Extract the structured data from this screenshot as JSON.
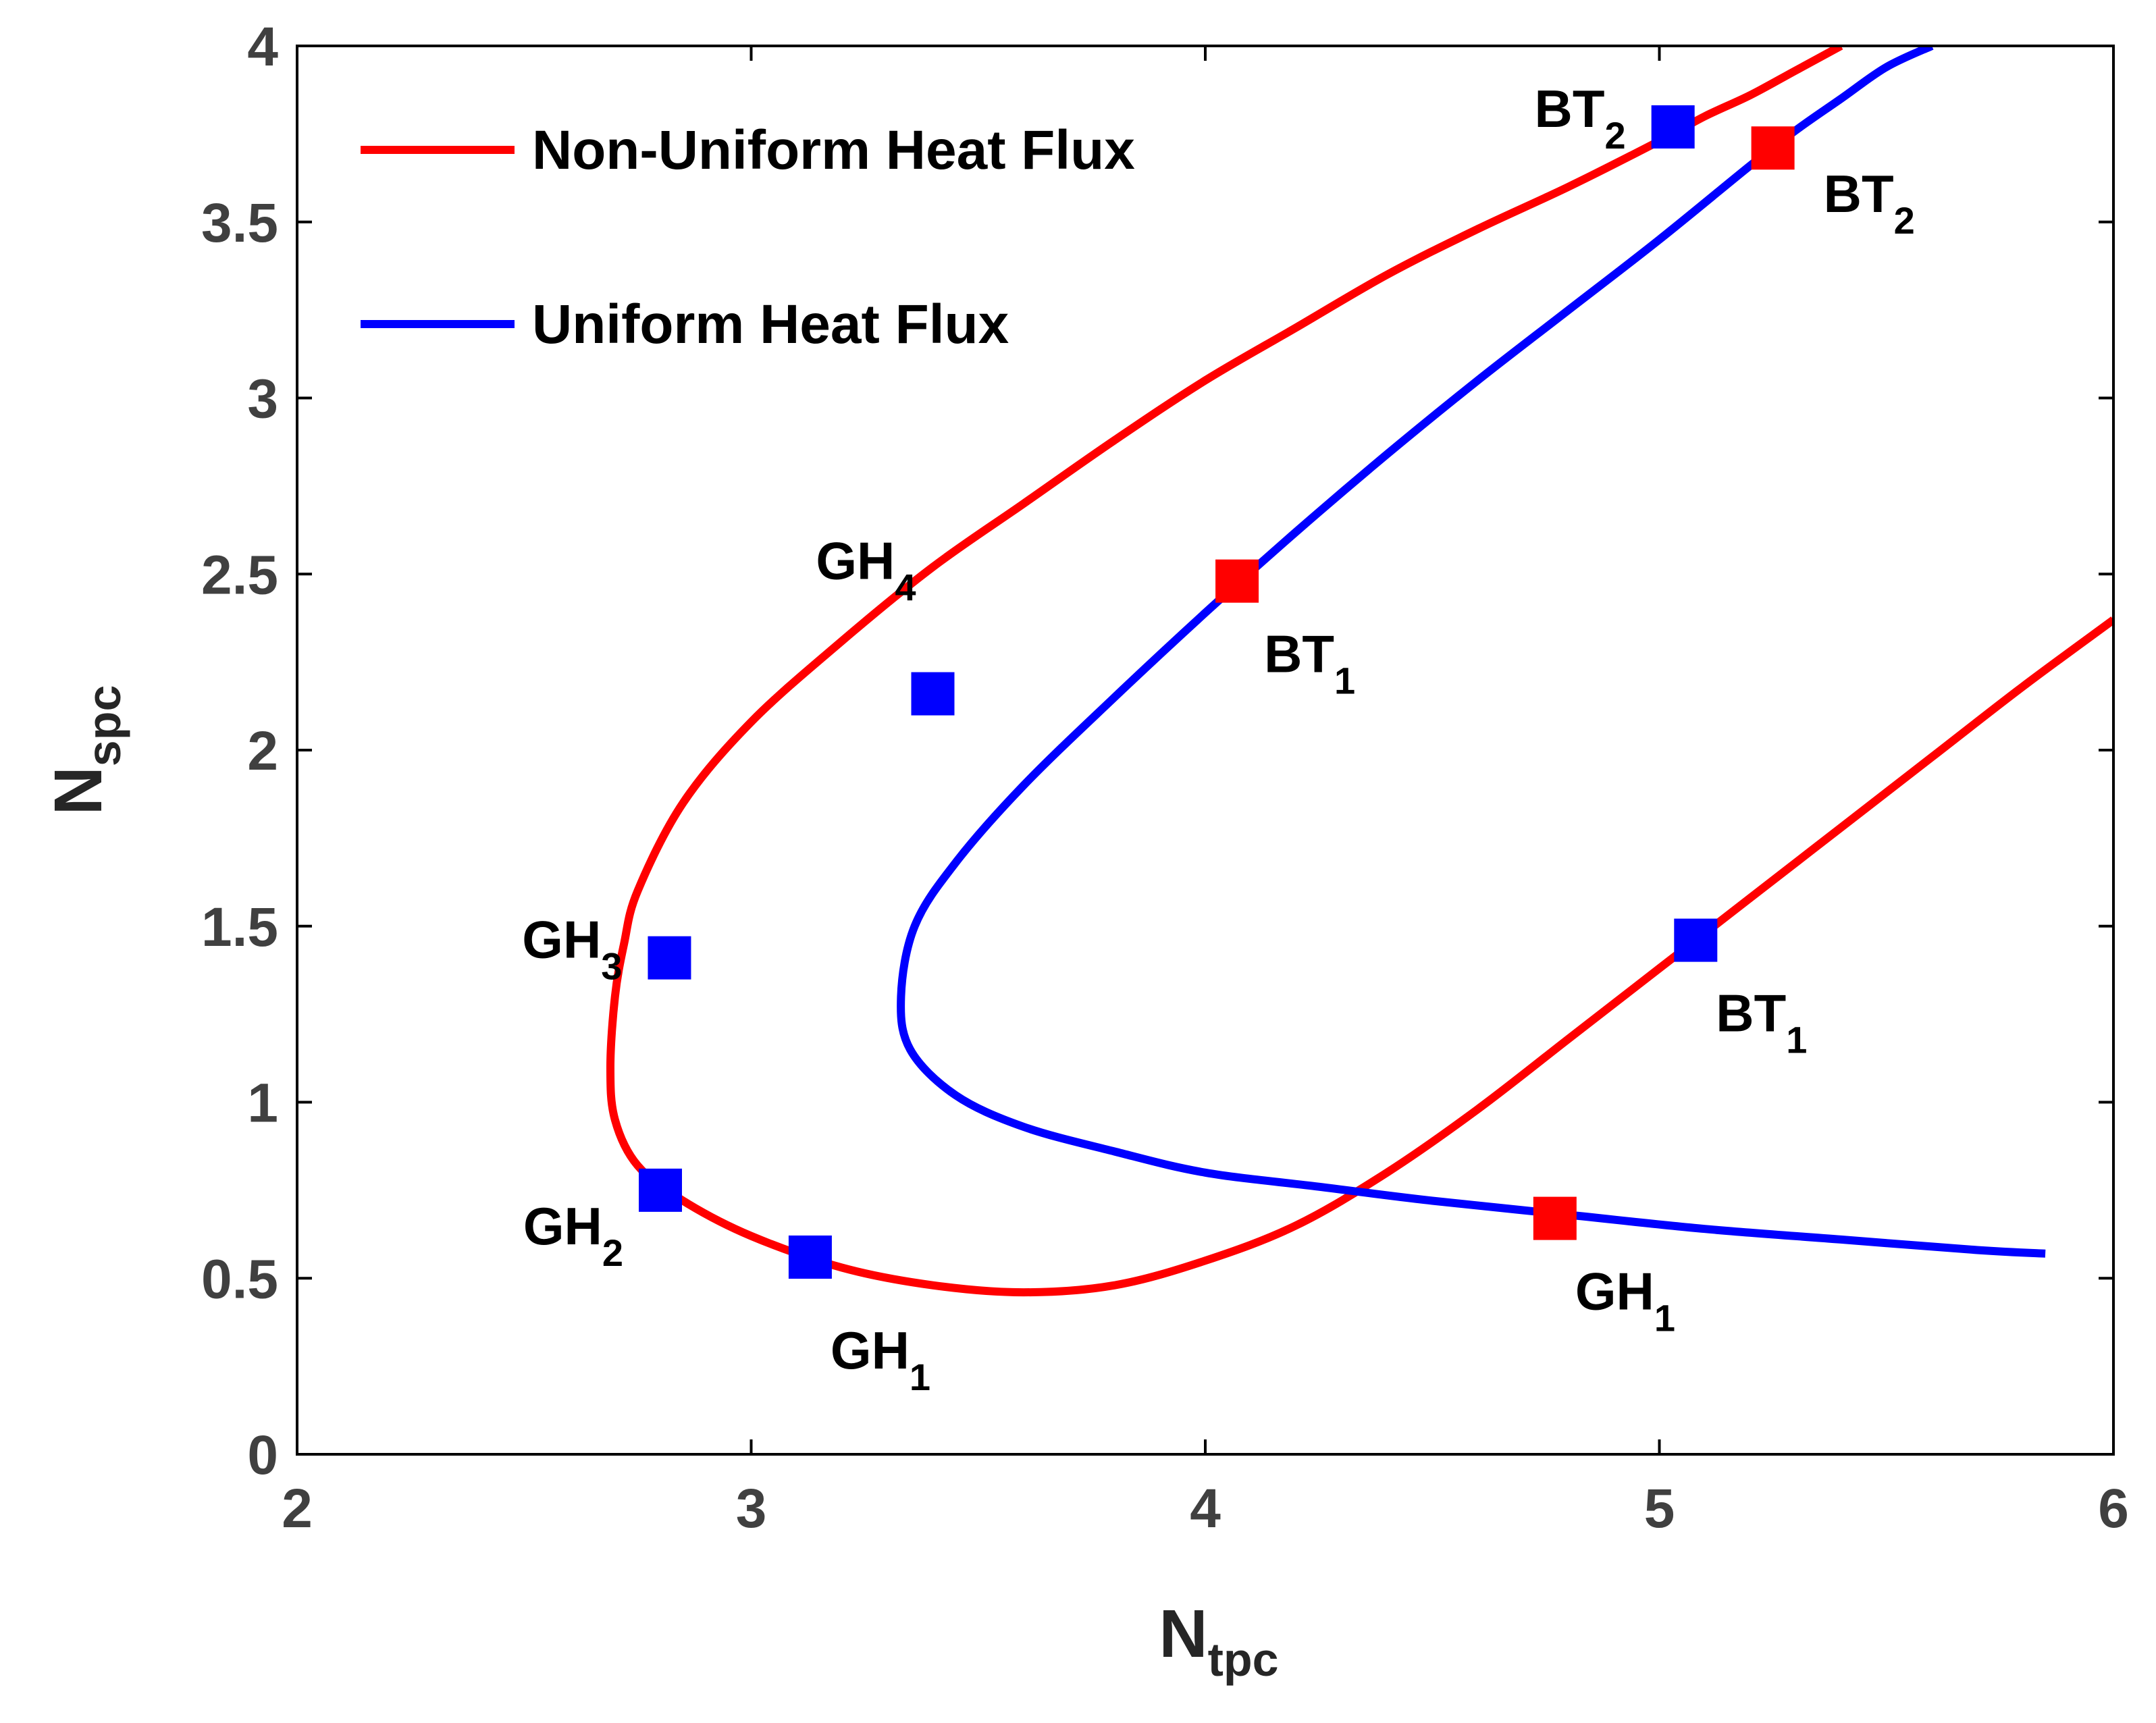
{
  "chart_data": {
    "type": "line",
    "xlabel": {
      "main": "N",
      "sub": "tpc"
    },
    "ylabel": {
      "main": "N",
      "sub": "spc"
    },
    "xlim": [
      2,
      6
    ],
    "ylim": [
      0,
      4
    ],
    "xticks": [
      "2",
      "3",
      "4",
      "5",
      "6"
    ],
    "yticks": [
      "0",
      "0.5",
      "1",
      "1.5",
      "2",
      "2.5",
      "3",
      "3.5",
      "4"
    ],
    "legend_position": "top-left",
    "series": [
      {
        "name": "Non-Uniform Heat Flux",
        "color": "#ff0000",
        "points": [
          [
            5.4,
            4.0
          ],
          [
            5.3,
            3.93
          ],
          [
            5.2,
            3.86
          ],
          [
            5.1,
            3.8
          ],
          [
            5.0,
            3.73
          ],
          [
            4.8,
            3.6
          ],
          [
            4.6,
            3.48
          ],
          [
            4.4,
            3.35
          ],
          [
            4.2,
            3.2
          ],
          [
            4.0,
            3.05
          ],
          [
            3.8,
            2.88
          ],
          [
            3.6,
            2.7
          ],
          [
            3.4,
            2.52
          ],
          [
            3.2,
            2.31
          ],
          [
            3.0,
            2.08
          ],
          [
            2.85,
            1.85
          ],
          [
            2.75,
            1.6
          ],
          [
            2.72,
            1.45
          ],
          [
            2.7,
            1.3
          ],
          [
            2.69,
            1.1
          ],
          [
            2.7,
            0.95
          ],
          [
            2.75,
            0.82
          ],
          [
            2.85,
            0.72
          ],
          [
            3.0,
            0.62
          ],
          [
            3.2,
            0.53
          ],
          [
            3.4,
            0.48
          ],
          [
            3.6,
            0.46
          ],
          [
            3.8,
            0.48
          ],
          [
            4.0,
            0.55
          ],
          [
            4.2,
            0.65
          ],
          [
            4.4,
            0.8
          ],
          [
            4.6,
            0.98
          ],
          [
            4.8,
            1.18
          ],
          [
            5.0,
            1.38
          ],
          [
            5.2,
            1.58
          ],
          [
            5.4,
            1.78
          ],
          [
            5.6,
            1.98
          ],
          [
            5.8,
            2.18
          ],
          [
            6.0,
            2.37
          ]
        ]
      },
      {
        "name": "Uniform Heat Flux",
        "color": "#0000ff",
        "points": [
          [
            5.6,
            4.0
          ],
          [
            5.5,
            3.94
          ],
          [
            5.4,
            3.85
          ],
          [
            5.3,
            3.76
          ],
          [
            5.2,
            3.66
          ],
          [
            5.0,
            3.45
          ],
          [
            4.8,
            3.25
          ],
          [
            4.6,
            3.05
          ],
          [
            4.4,
            2.84
          ],
          [
            4.2,
            2.62
          ],
          [
            4.0,
            2.39
          ],
          [
            3.8,
            2.15
          ],
          [
            3.6,
            1.9
          ],
          [
            3.45,
            1.68
          ],
          [
            3.36,
            1.5
          ],
          [
            3.33,
            1.3
          ],
          [
            3.35,
            1.15
          ],
          [
            3.45,
            1.02
          ],
          [
            3.6,
            0.93
          ],
          [
            3.8,
            0.86
          ],
          [
            4.0,
            0.8
          ],
          [
            4.25,
            0.76
          ],
          [
            4.5,
            0.72
          ],
          [
            4.8,
            0.68
          ],
          [
            5.1,
            0.64
          ],
          [
            5.4,
            0.61
          ],
          [
            5.7,
            0.58
          ],
          [
            5.85,
            0.57
          ]
        ]
      }
    ],
    "markers": [
      {
        "x": 2.8,
        "y": 0.75,
        "color": "#0000ff",
        "label": "GH",
        "sub": "2",
        "pos": "below-left"
      },
      {
        "x": 3.13,
        "y": 0.56,
        "color": "#0000ff",
        "label": "GH",
        "sub": "1",
        "pos": "below-right"
      },
      {
        "x": 2.82,
        "y": 1.41,
        "color": "#0000ff",
        "label": "GH",
        "sub": "3",
        "pos": "left"
      },
      {
        "x": 3.4,
        "y": 2.16,
        "color": "#0000ff",
        "label": "GH",
        "sub": "4",
        "pos": "above-left"
      },
      {
        "x": 5.08,
        "y": 1.46,
        "color": "#0000ff",
        "label": "BT",
        "sub": "1",
        "pos": "below-right"
      },
      {
        "x": 5.03,
        "y": 3.77,
        "color": "#0000ff",
        "label": "BT",
        "sub": "2",
        "pos": "left"
      },
      {
        "x": 4.07,
        "y": 2.48,
        "color": "#ff0000",
        "label": "BT",
        "sub": "1",
        "pos": "below-right"
      },
      {
        "x": 4.77,
        "y": 0.67,
        "color": "#ff0000",
        "label": "GH",
        "sub": "1",
        "pos": "below-right"
      },
      {
        "x": 5.25,
        "y": 3.71,
        "color": "#ff0000",
        "label": "BT",
        "sub": "2",
        "pos": "right"
      }
    ]
  }
}
